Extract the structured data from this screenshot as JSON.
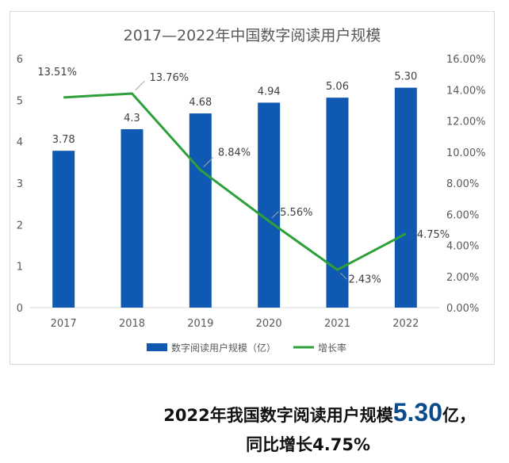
{
  "chart_data": {
    "type": "bar+line",
    "title": "2017—2022年中国数字阅读用户规模",
    "categories": [
      "2017",
      "2018",
      "2019",
      "2020",
      "2021",
      "2022"
    ],
    "series": [
      {
        "name": "数字阅读用户规模（亿）",
        "type": "bar",
        "axis": "left",
        "color": "#1059b2",
        "values": [
          3.78,
          4.3,
          4.68,
          4.94,
          5.06,
          5.3
        ],
        "labels": [
          "3.78",
          "4.3",
          "4.68",
          "4.94",
          "5.06",
          "5.30"
        ]
      },
      {
        "name": "增长率",
        "type": "line",
        "axis": "right",
        "color": "#2ea03a",
        "values": [
          13.51,
          13.76,
          8.84,
          5.56,
          2.43,
          4.75
        ],
        "labels": [
          "13.51%",
          "13.76%",
          "8.84%",
          "5.56%",
          "2.43%",
          "4.75%"
        ]
      }
    ],
    "y_left": {
      "min": 0,
      "max": 6,
      "ticks": [
        "0",
        "1",
        "2",
        "3",
        "4",
        "5",
        "6"
      ]
    },
    "y_right": {
      "min": 0,
      "max": 16,
      "ticks": [
        "0.00%",
        "2.00%",
        "4.00%",
        "6.00%",
        "8.00%",
        "10.00%",
        "12.00%",
        "14.00%",
        "16.00%"
      ]
    },
    "grid": false,
    "legend_position": "bottom"
  },
  "caption": {
    "line1_prefix": "2022年我国数字阅读用户规模",
    "line1_value": "5.30",
    "line1_suffix": "亿，",
    "line2": "同比增长4.75%"
  }
}
